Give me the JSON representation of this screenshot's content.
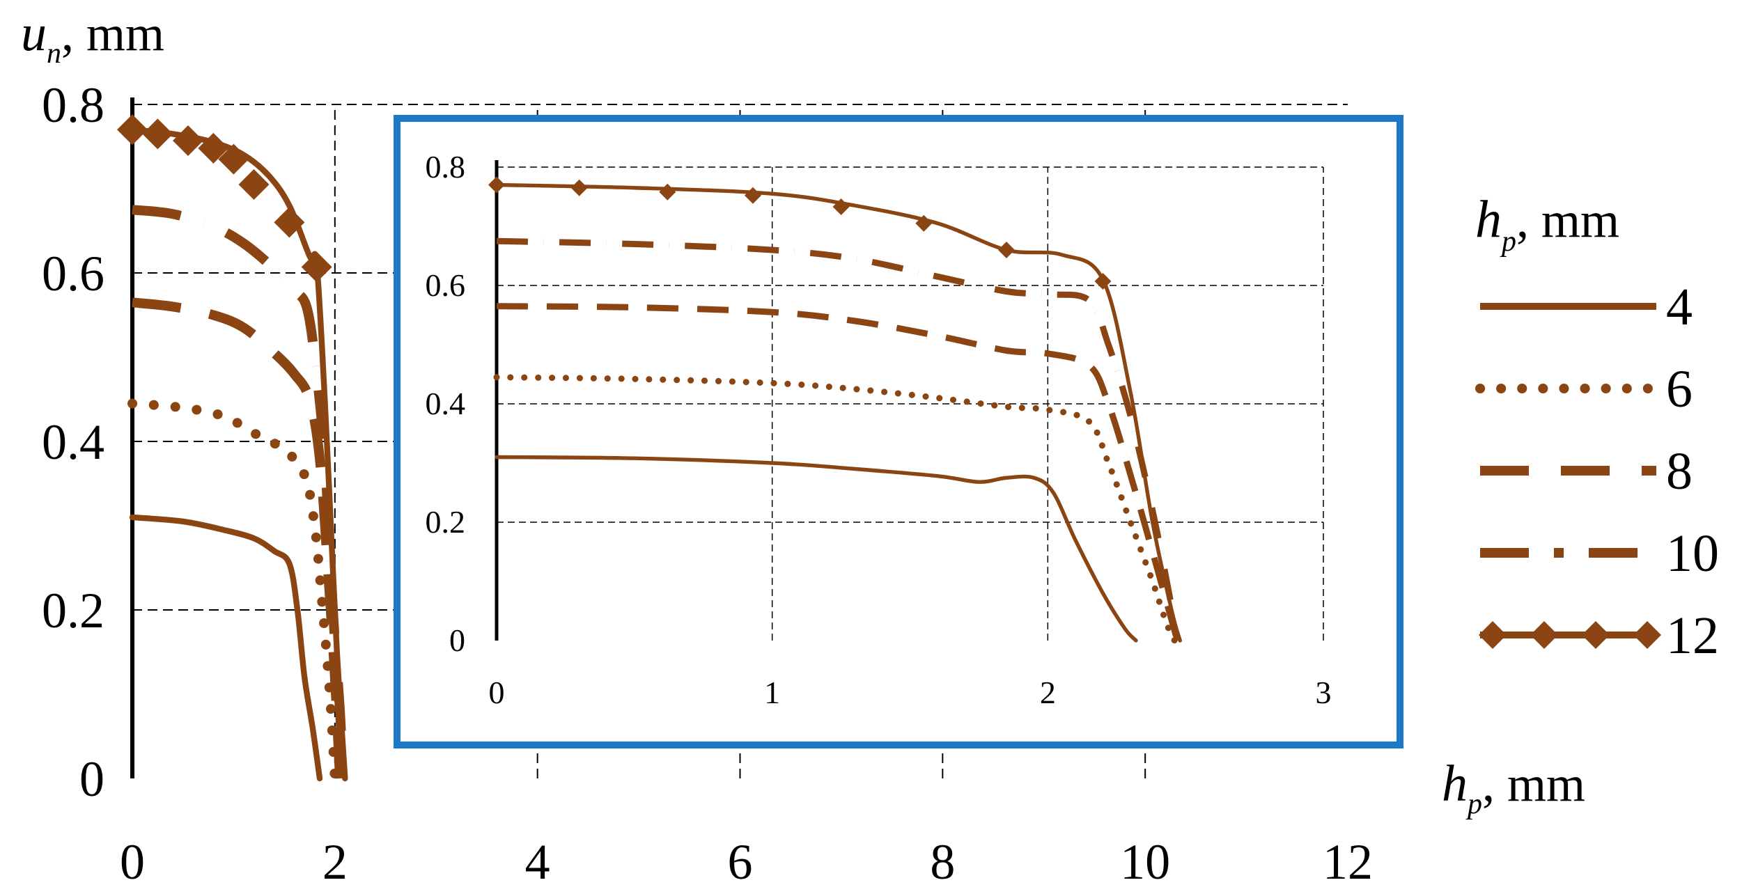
{
  "colors": {
    "series": "#8B4513",
    "inset_border": "#1E78C8"
  },
  "chart_data": [
    {
      "id": "main",
      "type": "line",
      "y_axis_label": {
        "symbol": "u",
        "subscript": "n",
        "unit": ", mm"
      },
      "x_axis_label": {
        "symbol": "h",
        "subscript": "p",
        "unit": ", mm"
      },
      "xlim": [
        0,
        12
      ],
      "ylim": [
        0,
        0.8
      ],
      "x_ticks": [
        "0",
        "2",
        "4",
        "6",
        "8",
        "10",
        "12"
      ],
      "y_ticks": [
        "0",
        "0.2",
        "0.4",
        "0.6",
        "0.8"
      ],
      "grid": true,
      "series": [
        {
          "name": "4",
          "style": "solid",
          "points": [
            [
              0,
              0.31
            ],
            [
              0.5,
              0.305
            ],
            [
              0.9,
              0.295
            ],
            [
              1.2,
              0.285
            ],
            [
              1.4,
              0.27
            ],
            [
              1.55,
              0.255
            ],
            [
              1.63,
              0.2
            ],
            [
              1.7,
              0.12
            ],
            [
              1.78,
              0.06
            ],
            [
              1.85,
              0.0
            ]
          ]
        },
        {
          "name": "6",
          "style": "dotted",
          "points": [
            [
              0,
              0.445
            ],
            [
              0.5,
              0.44
            ],
            [
              0.9,
              0.43
            ],
            [
              1.2,
              0.41
            ],
            [
              1.5,
              0.39
            ],
            [
              1.7,
              0.36
            ],
            [
              1.8,
              0.3
            ],
            [
              1.88,
              0.2
            ],
            [
              1.95,
              0.1
            ],
            [
              2.0,
              0.0
            ]
          ]
        },
        {
          "name": "8",
          "style": "dashed",
          "points": [
            [
              0,
              0.565
            ],
            [
              0.4,
              0.56
            ],
            [
              0.8,
              0.55
            ],
            [
              1.1,
              0.535
            ],
            [
              1.4,
              0.505
            ],
            [
              1.6,
              0.48
            ],
            [
              1.75,
              0.45
            ],
            [
              1.85,
              0.38
            ],
            [
              1.93,
              0.25
            ],
            [
              2.0,
              0.12
            ],
            [
              2.05,
              0.0
            ]
          ]
        },
        {
          "name": "10",
          "style": "dashdot",
          "points": [
            [
              0,
              0.675
            ],
            [
              0.4,
              0.67
            ],
            [
              0.8,
              0.655
            ],
            [
              1.1,
              0.635
            ],
            [
              1.4,
              0.605
            ],
            [
              1.6,
              0.58
            ],
            [
              1.72,
              0.56
            ],
            [
              1.8,
              0.5
            ],
            [
              1.9,
              0.38
            ],
            [
              1.98,
              0.2
            ],
            [
              2.05,
              0.08
            ],
            [
              2.08,
              0.0
            ]
          ]
        },
        {
          "name": "12",
          "style": "diamond",
          "points": [
            [
              0,
              0.77
            ],
            [
              0.4,
              0.765
            ],
            [
              0.8,
              0.755
            ],
            [
              1.1,
              0.74
            ],
            [
              1.35,
              0.715
            ],
            [
              1.55,
              0.68
            ],
            [
              1.75,
              0.62
            ],
            [
              1.82,
              0.61
            ],
            [
              1.9,
              0.45
            ],
            [
              1.96,
              0.3
            ],
            [
              2.02,
              0.15
            ],
            [
              2.1,
              0.0
            ]
          ],
          "markers": [
            [
              0,
              0.77
            ],
            [
              0.25,
              0.765
            ],
            [
              0.55,
              0.757
            ],
            [
              0.8,
              0.748
            ],
            [
              1.0,
              0.735
            ],
            [
              1.2,
              0.705
            ],
            [
              1.55,
              0.66
            ],
            [
              1.82,
              0.607
            ]
          ]
        }
      ]
    },
    {
      "id": "inset",
      "type": "line",
      "xlim": [
        0,
        3
      ],
      "ylim": [
        0,
        0.8
      ],
      "x_ticks": [
        "0",
        "1",
        "2",
        "3"
      ],
      "y_ticks": [
        "0",
        "0.2",
        "0.4",
        "0.6",
        "0.8"
      ],
      "grid": true,
      "series": [
        {
          "name": "4",
          "style": "solid",
          "points": [
            [
              0,
              0.31
            ],
            [
              0.5,
              0.308
            ],
            [
              1.0,
              0.3
            ],
            [
              1.3,
              0.29
            ],
            [
              1.6,
              0.278
            ],
            [
              1.75,
              0.268
            ],
            [
              1.85,
              0.275
            ],
            [
              1.95,
              0.275
            ],
            [
              2.02,
              0.25
            ],
            [
              2.1,
              0.17
            ],
            [
              2.2,
              0.08
            ],
            [
              2.28,
              0.02
            ],
            [
              2.32,
              0.0
            ]
          ]
        },
        {
          "name": "6",
          "style": "dotted",
          "points": [
            [
              0,
              0.445
            ],
            [
              0.5,
              0.442
            ],
            [
              1.0,
              0.435
            ],
            [
              1.3,
              0.425
            ],
            [
              1.6,
              0.41
            ],
            [
              1.85,
              0.395
            ],
            [
              2.0,
              0.39
            ],
            [
              2.15,
              0.37
            ],
            [
              2.22,
              0.3
            ],
            [
              2.3,
              0.2
            ],
            [
              2.38,
              0.1
            ],
            [
              2.43,
              0.03
            ],
            [
              2.46,
              0.0
            ]
          ]
        },
        {
          "name": "8",
          "style": "dashed",
          "points": [
            [
              0,
              0.565
            ],
            [
              0.5,
              0.563
            ],
            [
              1.0,
              0.555
            ],
            [
              1.3,
              0.54
            ],
            [
              1.6,
              0.515
            ],
            [
              1.85,
              0.49
            ],
            [
              2.0,
              0.485
            ],
            [
              2.15,
              0.465
            ],
            [
              2.22,
              0.4
            ],
            [
              2.3,
              0.28
            ],
            [
              2.38,
              0.15
            ],
            [
              2.44,
              0.05
            ],
            [
              2.47,
              0.0
            ]
          ]
        },
        {
          "name": "10",
          "style": "dashdot",
          "points": [
            [
              0,
              0.675
            ],
            [
              0.5,
              0.67
            ],
            [
              1.0,
              0.66
            ],
            [
              1.3,
              0.645
            ],
            [
              1.6,
              0.615
            ],
            [
              1.85,
              0.59
            ],
            [
              2.0,
              0.585
            ],
            [
              2.15,
              0.575
            ],
            [
              2.22,
              0.5
            ],
            [
              2.3,
              0.38
            ],
            [
              2.38,
              0.22
            ],
            [
              2.44,
              0.08
            ],
            [
              2.47,
              0.0
            ]
          ]
        },
        {
          "name": "12",
          "style": "diamond",
          "points": [
            [
              0,
              0.77
            ],
            [
              0.5,
              0.765
            ],
            [
              1.0,
              0.755
            ],
            [
              1.3,
              0.735
            ],
            [
              1.6,
              0.705
            ],
            [
              1.85,
              0.66
            ],
            [
              2.05,
              0.652
            ],
            [
              2.2,
              0.61
            ],
            [
              2.3,
              0.42
            ],
            [
              2.38,
              0.2
            ],
            [
              2.45,
              0.05
            ],
            [
              2.48,
              0.0
            ]
          ],
          "markers": [
            [
              0,
              0.77
            ],
            [
              0.3,
              0.765
            ],
            [
              0.62,
              0.758
            ],
            [
              0.93,
              0.752
            ],
            [
              1.25,
              0.733
            ],
            [
              1.55,
              0.705
            ],
            [
              1.85,
              0.66
            ],
            [
              2.2,
              0.607
            ]
          ]
        }
      ]
    }
  ],
  "legend": {
    "title": {
      "symbol": "h",
      "subscript": "p",
      "unit": ", mm"
    },
    "entries": [
      "4",
      "6",
      "8",
      "10",
      "12"
    ]
  }
}
